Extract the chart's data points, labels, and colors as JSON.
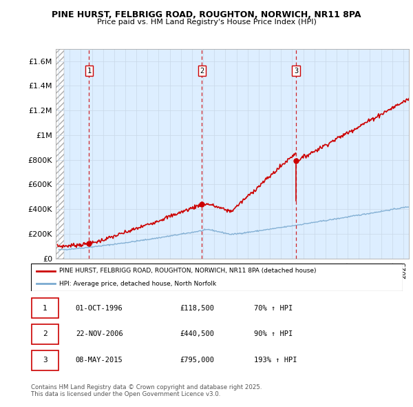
{
  "title_line1": "PINE HURST, FELBRIGG ROAD, ROUGHTON, NORWICH, NR11 8PA",
  "title_line2": "Price paid vs. HM Land Registry's House Price Index (HPI)",
  "ylim": [
    0,
    1700000
  ],
  "yticks": [
    0,
    200000,
    400000,
    600000,
    800000,
    1000000,
    1200000,
    1400000,
    1600000
  ],
  "ytick_labels": [
    "£0",
    "£200K",
    "£400K",
    "£600K",
    "£800K",
    "£1M",
    "£1.2M",
    "£1.4M",
    "£1.6M"
  ],
  "xmin": 1993.75,
  "xmax": 2025.5,
  "sale_dates": [
    1996.75,
    2006.9,
    2015.36
  ],
  "sale_prices": [
    118500,
    440500,
    795000
  ],
  "sale_labels": [
    "1",
    "2",
    "3"
  ],
  "property_color": "#cc0000",
  "hpi_color": "#7aaad0",
  "legend_property": "PINE HURST, FELBRIGG ROAD, ROUGHTON, NORWICH, NR11 8PA (detached house)",
  "legend_hpi": "HPI: Average price, detached house, North Norfolk",
  "table_rows": [
    [
      "1",
      "01-OCT-1996",
      "£118,500",
      "70% ↑ HPI"
    ],
    [
      "2",
      "22-NOV-2006",
      "£440,500",
      "90% ↑ HPI"
    ],
    [
      "3",
      "08-MAY-2015",
      "£795,000",
      "193% ↑ HPI"
    ]
  ],
  "footnote": "Contains HM Land Registry data © Crown copyright and database right 2025.\nThis data is licensed under the Open Government Licence v3.0.",
  "background_color": "#ddeeff",
  "hatch_end": 1994.5
}
